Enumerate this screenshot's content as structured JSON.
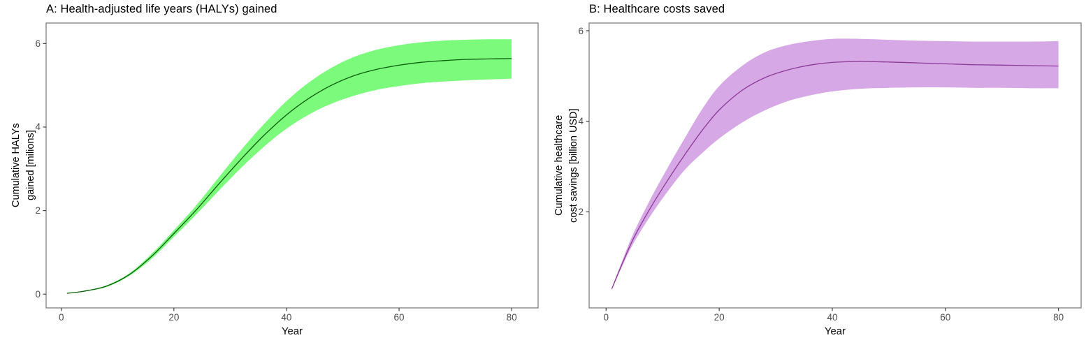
{
  "figure": {
    "background": "#ffffff"
  },
  "axis_style": {
    "border_color": "#7c7c7c",
    "tick_color": "#333333",
    "tick_label_color": "#4d4d4d",
    "text_color": "#000000"
  },
  "chart_data": [
    {
      "type": "area",
      "panel": "A",
      "title": "A: Health-adjusted life years (HALYs) gained",
      "xlabel": "Year",
      "ylabel": "Cumulative HALYs\ngained [milions]",
      "legend": "none",
      "grid": false,
      "xlim": [
        -2.7,
        84.7
      ],
      "ylim": [
        -0.33,
        6.49
      ],
      "x_ticks": [
        0,
        20,
        40,
        60,
        80
      ],
      "y_ticks": [
        0,
        2,
        4,
        6
      ],
      "colors": {
        "ribbon": "#7CFA7C",
        "line": "#0A5E0A"
      },
      "x": [
        1,
        4,
        8,
        12,
        16,
        20,
        24,
        28,
        32,
        36,
        40,
        44,
        48,
        52,
        56,
        60,
        64,
        68,
        72,
        76,
        80
      ],
      "series": [
        {
          "name": "central",
          "values": [
            0.02,
            0.07,
            0.19,
            0.46,
            0.9,
            1.45,
            2.02,
            2.64,
            3.24,
            3.8,
            4.29,
            4.69,
            5.0,
            5.23,
            5.38,
            5.48,
            5.55,
            5.59,
            5.62,
            5.63,
            5.64
          ]
        },
        {
          "name": "lower",
          "values": [
            0.02,
            0.06,
            0.17,
            0.43,
            0.84,
            1.37,
            1.91,
            2.48,
            3.03,
            3.53,
            3.96,
            4.3,
            4.56,
            4.75,
            4.89,
            4.98,
            5.05,
            5.09,
            5.12,
            5.14,
            5.16
          ]
        },
        {
          "name": "upper",
          "values": [
            0.02,
            0.08,
            0.21,
            0.49,
            0.96,
            1.53,
            2.13,
            2.8,
            3.46,
            4.07,
            4.62,
            5.07,
            5.42,
            5.68,
            5.85,
            5.96,
            6.03,
            6.07,
            6.09,
            6.1,
            6.1
          ]
        }
      ]
    },
    {
      "type": "area",
      "panel": "B",
      "title": "B: Healthcare costs saved",
      "xlabel": "Year",
      "ylabel": "Cumulative healthcare\ncost savings [billion USD]",
      "legend": "none",
      "grid": false,
      "xlim": [
        -3.0,
        84.0
      ],
      "ylim": [
        -0.12,
        6.17
      ],
      "x_ticks": [
        0,
        20,
        40,
        60,
        80
      ],
      "y_ticks": [
        2,
        4,
        6
      ],
      "colors": {
        "ribbon": "#D7A8E6",
        "line": "#8B3A96"
      },
      "x": [
        1,
        3,
        5,
        8,
        11,
        14,
        17,
        20,
        24,
        28,
        32,
        36,
        40,
        45,
        50,
        55,
        60,
        65,
        70,
        75,
        80
      ],
      "series": [
        {
          "name": "central",
          "values": [
            0.3,
            0.9,
            1.45,
            2.12,
            2.72,
            3.28,
            3.8,
            4.25,
            4.68,
            4.96,
            5.13,
            5.24,
            5.3,
            5.32,
            5.31,
            5.29,
            5.27,
            5.25,
            5.24,
            5.23,
            5.22
          ]
        },
        {
          "name": "lower",
          "values": [
            0.28,
            0.84,
            1.34,
            1.94,
            2.47,
            2.94,
            3.3,
            3.62,
            3.97,
            4.24,
            4.44,
            4.57,
            4.66,
            4.72,
            4.74,
            4.75,
            4.75,
            4.74,
            4.74,
            4.73,
            4.73
          ]
        },
        {
          "name": "upper",
          "values": [
            0.32,
            0.97,
            1.57,
            2.32,
            3.0,
            3.65,
            4.27,
            4.78,
            5.22,
            5.52,
            5.68,
            5.77,
            5.82,
            5.82,
            5.8,
            5.78,
            5.77,
            5.76,
            5.76,
            5.76,
            5.77
          ]
        }
      ]
    }
  ]
}
